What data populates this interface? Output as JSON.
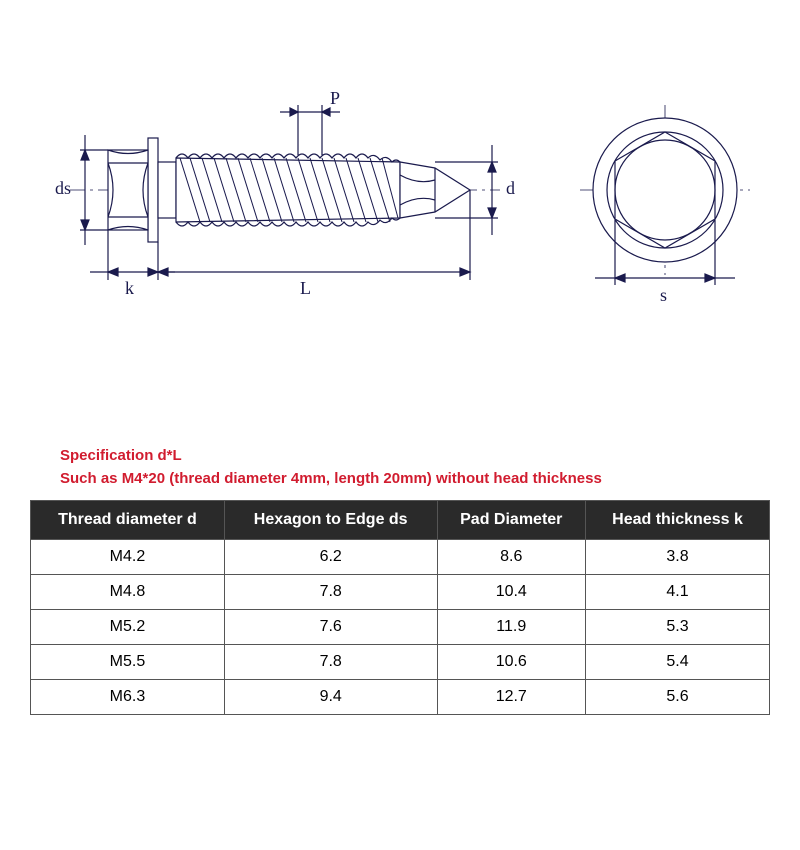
{
  "diagram": {
    "line_color": "#1a1a4d",
    "line_width": 1.2,
    "labels": {
      "ds": "ds",
      "k": "k",
      "L": "L",
      "P": "P",
      "d": "d",
      "s": "s"
    }
  },
  "spec": {
    "color": "#d11c2f",
    "line1": "Specification d*L",
    "line2": "Such as M4*20 (thread diameter 4mm, length 20mm) without head thickness"
  },
  "table": {
    "header_bg": "#2a2a2a",
    "header_color": "#ffffff",
    "border_color": "#555555",
    "cell_bg": "#ffffff",
    "columns": [
      "Thread diameter d",
      "Hexagon to Edge ds",
      "Pad Diameter",
      "Head thickness k"
    ],
    "rows": [
      [
        "M4.2",
        "6.2",
        "8.6",
        "3.8"
      ],
      [
        "M4.8",
        "7.8",
        "10.4",
        "4.1"
      ],
      [
        "M5.2",
        "7.6",
        "11.9",
        "5.3"
      ],
      [
        "M5.5",
        "7.8",
        "10.6",
        "5.4"
      ],
      [
        "M6.3",
        "9.4",
        "12.7",
        "5.6"
      ]
    ]
  }
}
